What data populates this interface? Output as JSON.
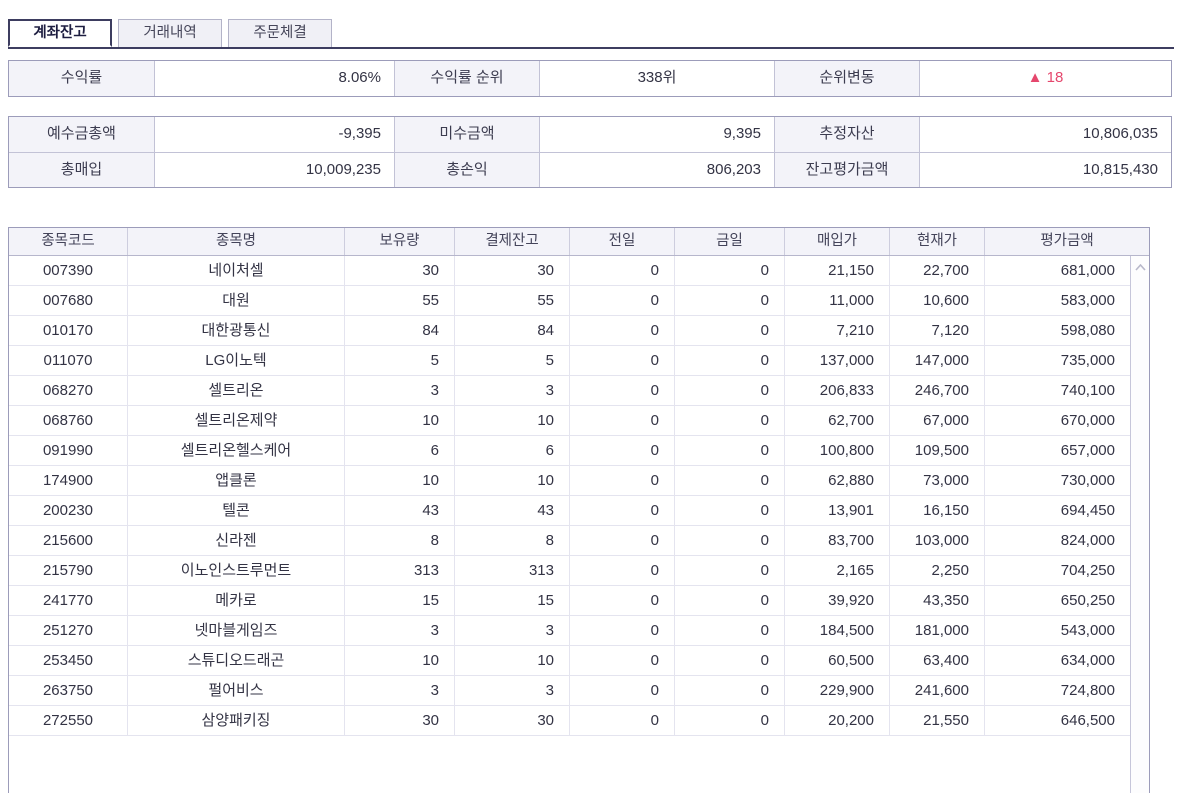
{
  "tabs": [
    {
      "label": "계좌잔고",
      "active": true
    },
    {
      "label": "거래내역",
      "active": false
    },
    {
      "label": "주문체결",
      "active": false
    }
  ],
  "summary1": {
    "cells": [
      {
        "label": "수익률",
        "value": "8.06%"
      },
      {
        "label": "수익률 순위",
        "value": "338위"
      },
      {
        "label": "순위변동",
        "arrow": "▲",
        "value": "18"
      }
    ]
  },
  "summary2": {
    "rows": [
      [
        {
          "label": "예수금총액",
          "value": "-9,395"
        },
        {
          "label": "미수금액",
          "value": "9,395"
        },
        {
          "label": "추정자산",
          "value": "10,806,035"
        }
      ],
      [
        {
          "label": "총매입",
          "value": "10,009,235"
        },
        {
          "label": "총손익",
          "value": "806,203"
        },
        {
          "label": "잔고평가금액",
          "value": "10,815,430"
        }
      ]
    ]
  },
  "table": {
    "columns": [
      "종목코드",
      "종목명",
      "보유량",
      "결제잔고",
      "전일",
      "금일",
      "매입가",
      "현재가",
      "평가금액"
    ],
    "column_align": [
      "center",
      "center",
      "right",
      "right",
      "right",
      "right",
      "right",
      "right",
      "right"
    ],
    "rows": [
      [
        "007390",
        "네이처셀",
        "30",
        "30",
        "0",
        "0",
        "21,150",
        "22,700",
        "681,000"
      ],
      [
        "007680",
        "대원",
        "55",
        "55",
        "0",
        "0",
        "11,000",
        "10,600",
        "583,000"
      ],
      [
        "010170",
        "대한광통신",
        "84",
        "84",
        "0",
        "0",
        "7,210",
        "7,120",
        "598,080"
      ],
      [
        "011070",
        "LG이노텍",
        "5",
        "5",
        "0",
        "0",
        "137,000",
        "147,000",
        "735,000"
      ],
      [
        "068270",
        "셀트리온",
        "3",
        "3",
        "0",
        "0",
        "206,833",
        "246,700",
        "740,100"
      ],
      [
        "068760",
        "셀트리온제약",
        "10",
        "10",
        "0",
        "0",
        "62,700",
        "67,000",
        "670,000"
      ],
      [
        "091990",
        "셀트리온헬스케어",
        "6",
        "6",
        "0",
        "0",
        "100,800",
        "109,500",
        "657,000"
      ],
      [
        "174900",
        "앱클론",
        "10",
        "10",
        "0",
        "0",
        "62,880",
        "73,000",
        "730,000"
      ],
      [
        "200230",
        "텔콘",
        "43",
        "43",
        "0",
        "0",
        "13,901",
        "16,150",
        "694,450"
      ],
      [
        "215600",
        "신라젠",
        "8",
        "8",
        "0",
        "0",
        "83,700",
        "103,000",
        "824,000"
      ],
      [
        "215790",
        "이노인스트루먼트",
        "313",
        "313",
        "0",
        "0",
        "2,165",
        "2,250",
        "704,250"
      ],
      [
        "241770",
        "메카로",
        "15",
        "15",
        "0",
        "0",
        "39,920",
        "43,350",
        "650,250"
      ],
      [
        "251270",
        "넷마블게임즈",
        "3",
        "3",
        "0",
        "0",
        "184,500",
        "181,000",
        "543,000"
      ],
      [
        "253450",
        "스튜디오드래곤",
        "10",
        "10",
        "0",
        "0",
        "60,500",
        "63,400",
        "634,000"
      ],
      [
        "263750",
        "펄어비스",
        "3",
        "3",
        "0",
        "0",
        "229,900",
        "241,600",
        "724,800"
      ],
      [
        "272550",
        "삼양패키징",
        "30",
        "30",
        "0",
        "0",
        "20,200",
        "21,550",
        "646,500"
      ]
    ]
  },
  "colors": {
    "rank_up": "#e5476d",
    "tab_accent": "#3d3d60",
    "header_bg": "#f3f3f9",
    "border": "#9c9cba"
  }
}
